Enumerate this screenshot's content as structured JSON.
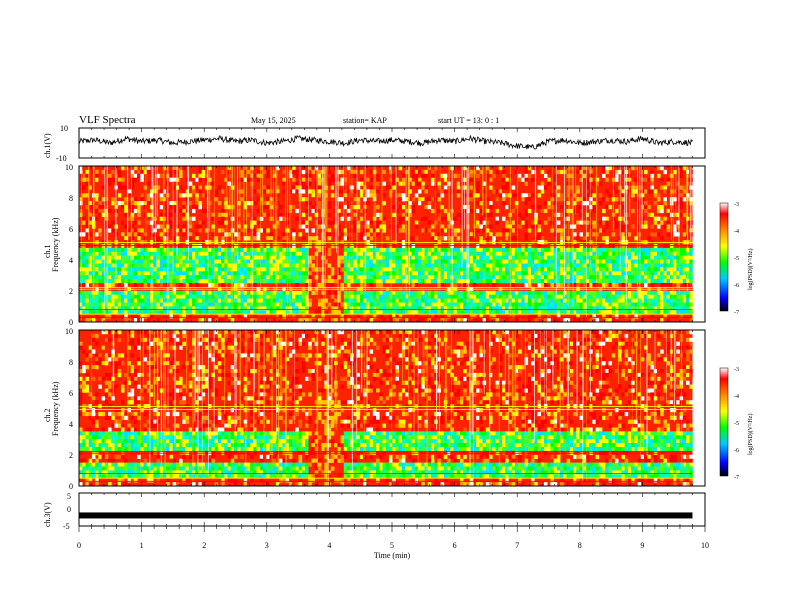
{
  "header": {
    "title": "VLF Spectra",
    "date": "May 15, 2025",
    "station": "station= KAP",
    "start": "start  UT  =   13: 0   : 1"
  },
  "colors": {
    "scale": [
      "#000000",
      "#0000ff",
      "#00c8ff",
      "#00ff00",
      "#ffff00",
      "#ff8800",
      "#ff0000",
      "#ffffff"
    ],
    "trace": "#000000",
    "axis": "#000000"
  },
  "chart_data": [
    {
      "type": "line",
      "panel": "ch1-waveform",
      "ylabel": "ch.1(V)",
      "ylim": [
        -10,
        10
      ],
      "yticks": [
        "10",
        "-10"
      ],
      "x": [
        0,
        0.25,
        0.5,
        0.75,
        1,
        1.25,
        1.5,
        1.75,
        2,
        2.25,
        2.5,
        2.75,
        3,
        3.25,
        3.5,
        3.75,
        4,
        4.25,
        4.5,
        4.75,
        5,
        5.25,
        5.5,
        5.75,
        6,
        6.25,
        6.5,
        6.75,
        7,
        7.25,
        7.5,
        7.75,
        8,
        8.25,
        8.5,
        8.75,
        9,
        9.25,
        9.5,
        9.8
      ],
      "y": [
        1,
        2,
        0,
        3,
        1,
        2,
        0,
        1,
        2,
        3,
        1,
        2,
        0,
        1,
        3,
        2,
        1,
        0,
        2,
        1,
        2,
        1,
        0,
        2,
        1,
        3,
        1,
        0,
        -2,
        -3,
        1,
        2,
        0,
        1,
        2,
        1,
        3,
        0,
        1,
        0
      ],
      "note": "noisy waveform roughly between -5 and +5 V"
    },
    {
      "type": "heatmap",
      "panel": "ch1-spectrogram",
      "ylabel": "Frequency (kHz)",
      "channel_label": "ch.1",
      "ylim": [
        0,
        10
      ],
      "yticks": [
        "0",
        "2",
        "4",
        "6",
        "8",
        "10"
      ],
      "colorbar": {
        "label": "log(PSD)(V²/Hz)",
        "range": [
          -7,
          -3
        ],
        "ticks": [
          "-3",
          "-4",
          "-5",
          "-6",
          "-7"
        ]
      },
      "low_power_bands_kHz": [
        [
          0.5,
          1.9
        ],
        [
          2.4,
          3.4
        ],
        [
          3.6,
          4.8
        ]
      ],
      "disturbed_interval_min": [
        3.65,
        4.25
      ]
    },
    {
      "type": "heatmap",
      "panel": "ch2-spectrogram",
      "ylabel": "Frequency (kHz)",
      "channel_label": "ch.2",
      "ylim": [
        0,
        10
      ],
      "yticks": [
        "0",
        "2",
        "4",
        "6",
        "8",
        "10"
      ],
      "colorbar": {
        "label": "log(PSD)(V²/Hz)",
        "range": [
          -7,
          -3
        ],
        "ticks": [
          "-3",
          "-4",
          "-5",
          "-6",
          "-7"
        ]
      },
      "low_power_bands_kHz": [
        [
          0.5,
          1.6
        ],
        [
          2.3,
          3.4
        ]
      ],
      "disturbed_interval_min": [
        3.65,
        4.25
      ]
    },
    {
      "type": "line",
      "panel": "ch3-waveform",
      "ylabel": "ch.3(V)",
      "ylim": [
        -5,
        5
      ],
      "yticks": [
        "5",
        "0",
        "-5"
      ],
      "x": [
        0,
        9.8
      ],
      "y": [
        -1.8,
        -1.8
      ],
      "note": "thick band near -2 V"
    }
  ],
  "xaxis": {
    "label": "Time  (min)",
    "range": [
      0,
      10
    ],
    "ticks": [
      "0",
      "1",
      "2",
      "3",
      "4",
      "5",
      "6",
      "7",
      "8",
      "9",
      "10"
    ]
  }
}
